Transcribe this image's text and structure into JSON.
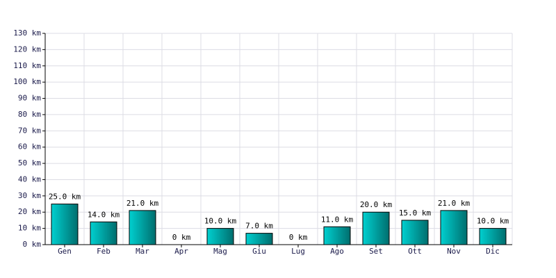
{
  "chart_data": {
    "type": "bar",
    "categories": [
      "Gen",
      "Feb",
      "Mar",
      "Apr",
      "Mag",
      "Giu",
      "Lug",
      "Ago",
      "Set",
      "Ott",
      "Nov",
      "Dic"
    ],
    "values": [
      25,
      14,
      21,
      0,
      10,
      7,
      0,
      11,
      20,
      15,
      21,
      10
    ],
    "value_labels": [
      "25.0 km",
      "14.0 km",
      "21.0 km",
      "0 km",
      "10.0 km",
      "7.0 km",
      "0 km",
      "11.0 km",
      "20.0 km",
      "15.0 km",
      "21.0 km",
      "10.0 km"
    ],
    "color": "#00d0d0",
    "ylim": [
      0,
      130
    ],
    "yticks": [
      {
        "value": 0,
        "label": "0 km"
      },
      {
        "value": 10,
        "label": "10 km"
      },
      {
        "value": 20,
        "label": "20 km"
      },
      {
        "value": 30,
        "label": "30 km"
      },
      {
        "value": 40,
        "label": "40 km"
      },
      {
        "value": 50,
        "label": "50 km"
      },
      {
        "value": 60,
        "label": "60 km"
      },
      {
        "value": 70,
        "label": "70 km"
      },
      {
        "value": 80,
        "label": "80 km"
      },
      {
        "value": 90,
        "label": "90 km"
      },
      {
        "value": 100,
        "label": "100 km"
      },
      {
        "value": 110,
        "label": "110 km"
      },
      {
        "value": 120,
        "label": "120 km"
      },
      {
        "value": 130,
        "label": "130 km"
      }
    ],
    "grid": true
  }
}
